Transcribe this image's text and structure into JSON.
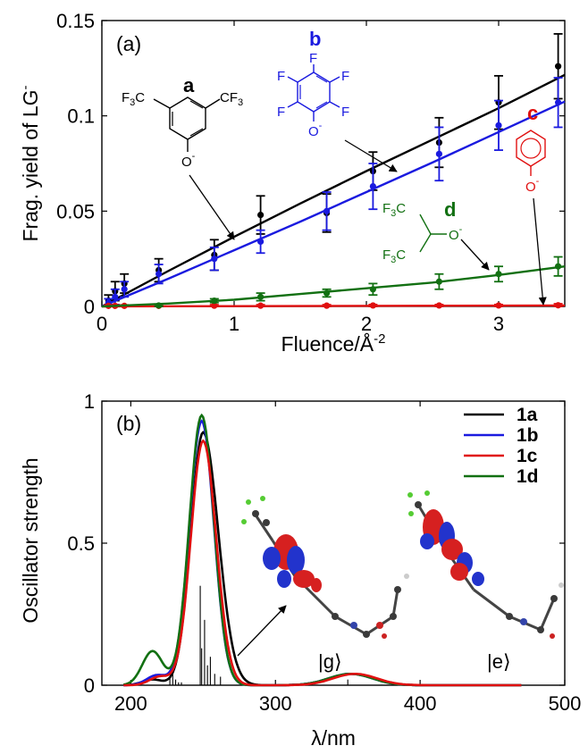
{
  "chart_data": [
    {
      "type": "line",
      "panel_label": "(a)",
      "xlabel": "Fluence/Å",
      "xlabel_sup": "-2",
      "ylabel": "Frag. yield of LG",
      "ylabel_sup": "-",
      "xlim": [
        0,
        3.5
      ],
      "ylim": [
        0,
        0.15
      ],
      "xticks": [
        "0",
        "1",
        "2",
        "3"
      ],
      "yticks": [
        "0",
        "0.05",
        "0.1",
        "0.15"
      ],
      "grid": false,
      "series": [
        {
          "name": "a",
          "color": "#000000",
          "fit": [
            [
              0,
              0
            ],
            [
              0.5,
              0.0185
            ],
            [
              1,
              0.0365
            ],
            [
              1.5,
              0.054
            ],
            [
              2,
              0.071
            ],
            [
              2.5,
              0.0875
            ],
            [
              3,
              0.104
            ],
            [
              3.5,
              0.1215
            ]
          ],
          "x": [
            0.05,
            0.1,
            0.17,
            0.43,
            0.85,
            1.2,
            1.7,
            2.05,
            2.55,
            3.0,
            3.45
          ],
          "y": [
            0.003,
            0.008,
            0.012,
            0.019,
            0.027,
            0.048,
            0.049,
            0.071,
            0.086,
            0.107,
            0.126
          ],
          "err": [
            0.003,
            0.005,
            0.005,
            0.006,
            0.008,
            0.01,
            0.01,
            0.01,
            0.013,
            0.014,
            0.017
          ]
        },
        {
          "name": "b",
          "color": "#1a1adf",
          "fit": [
            [
              0,
              0
            ],
            [
              0.5,
              0.0145
            ],
            [
              1,
              0.0295
            ],
            [
              1.5,
              0.0445
            ],
            [
              2,
              0.06
            ],
            [
              2.5,
              0.0755
            ],
            [
              3,
              0.0915
            ],
            [
              3.5,
              0.1075
            ]
          ],
          "x": [
            0.05,
            0.1,
            0.17,
            0.43,
            0.85,
            1.2,
            1.7,
            2.05,
            2.55,
            3.0,
            3.45
          ],
          "y": [
            0.002,
            0.005,
            0.009,
            0.017,
            0.025,
            0.034,
            0.05,
            0.063,
            0.08,
            0.095,
            0.107
          ],
          "err": [
            0.002,
            0.004,
            0.004,
            0.005,
            0.006,
            0.006,
            0.01,
            0.012,
            0.014,
            0.013,
            0.013
          ]
        },
        {
          "name": "c",
          "color": "#e01010",
          "fit": [
            [
              0,
              0
            ],
            [
              3.5,
              0.0005
            ]
          ],
          "x": [
            0.05,
            0.1,
            0.17,
            0.43,
            0.85,
            1.2,
            1.7,
            2.05,
            2.55,
            3.0,
            3.45
          ],
          "y": [
            0.0003,
            0.0003,
            0.0003,
            0.0003,
            0.0004,
            0.0004,
            0.0004,
            0.0005,
            0.0005,
            0.0005,
            0.0006
          ],
          "err": [
            0.0005,
            0.0005,
            0.0005,
            0.0005,
            0.0005,
            0.0005,
            0.0005,
            0.0005,
            0.0005,
            0.0005,
            0.0008
          ]
        },
        {
          "name": "d",
          "color": "#127012",
          "fit": [
            [
              0,
              0
            ],
            [
              0.5,
              0.0015
            ],
            [
              1,
              0.0035
            ],
            [
              1.5,
              0.0065
            ],
            [
              2,
              0.0095
            ],
            [
              2.5,
              0.0125
            ],
            [
              3,
              0.0165
            ],
            [
              3.5,
              0.021
            ]
          ],
          "x": [
            0.43,
            0.85,
            1.2,
            1.7,
            2.05,
            2.55,
            3.0,
            3.45
          ],
          "y": [
            0.0005,
            0.003,
            0.005,
            0.007,
            0.009,
            0.013,
            0.017,
            0.021
          ],
          "err": [
            0.0005,
            0.001,
            0.002,
            0.002,
            0.003,
            0.004,
            0.004,
            0.005
          ]
        }
      ],
      "molecules": {
        "a": {
          "label": "a",
          "groups": [
            "F",
            "3",
            "C",
            "CF",
            "3",
            "O"
          ],
          "charge": "-"
        },
        "b": {
          "label": "b",
          "atoms": [
            "F",
            "F",
            "F",
            "F",
            "F",
            "O"
          ],
          "charge": "-"
        },
        "c": {
          "label": "c",
          "atoms": [
            "O"
          ],
          "charge": "-"
        },
        "d": {
          "label": "d",
          "groups": [
            "F",
            "3",
            "C",
            "F",
            "3",
            "C",
            "O"
          ],
          "charge": "-"
        }
      }
    },
    {
      "type": "line",
      "panel_label": "(b)",
      "xlabel": "λ/nm",
      "ylabel": "Oscillator strength",
      "xlim": [
        180,
        500
      ],
      "ylim": [
        0,
        1
      ],
      "xticks": [
        "200",
        "300",
        "400",
        "500"
      ],
      "yticks": [
        "0",
        "0.5",
        "1"
      ],
      "grid": false,
      "legend_position": "top-right",
      "series": [
        {
          "name": "1a",
          "color": "#000000",
          "peak": 0.89,
          "peak_x": 250,
          "sigma_r": 10.5,
          "shoulder": [
            215,
            0.02
          ],
          "uv2": [
            352,
            0.04
          ]
        },
        {
          "name": "1b",
          "color": "#1a1adf",
          "peak": 0.93,
          "peak_x": 249,
          "sigma_r": 8.5,
          "shoulder": [
            218,
            0.035
          ],
          "uv2": [
            352,
            0.04
          ]
        },
        {
          "name": "1c",
          "color": "#e01010",
          "peak": 0.86,
          "peak_x": 250,
          "sigma_r": 9.0,
          "shoulder": [
            220,
            0.03
          ],
          "uv2": [
            355,
            0.04
          ]
        },
        {
          "name": "1d",
          "color": "#127012",
          "peak": 0.95,
          "peak_x": 249,
          "sigma_r": 8.5,
          "shoulder": [
            215,
            0.12
          ],
          "uv2": [
            352,
            0.04
          ]
        }
      ],
      "sticks": [
        {
          "x": 227,
          "y": 0.03
        },
        {
          "x": 229,
          "y": 0.05
        },
        {
          "x": 231,
          "y": 0.02
        },
        {
          "x": 233,
          "y": 0.01
        },
        {
          "x": 235,
          "y": 0.01
        },
        {
          "x": 248,
          "y": 0.35
        },
        {
          "x": 249,
          "y": 0.13
        },
        {
          "x": 251,
          "y": 0.23
        },
        {
          "x": 253,
          "y": 0.07
        },
        {
          "x": 255,
          "y": 0.1
        },
        {
          "x": 258,
          "y": 0.04
        },
        {
          "x": 262,
          "y": 0.03
        },
        {
          "x": 350,
          "y": 0.02
        }
      ],
      "annotations": {
        "ground": "|g⟩",
        "excited": "|e⟩"
      }
    }
  ]
}
